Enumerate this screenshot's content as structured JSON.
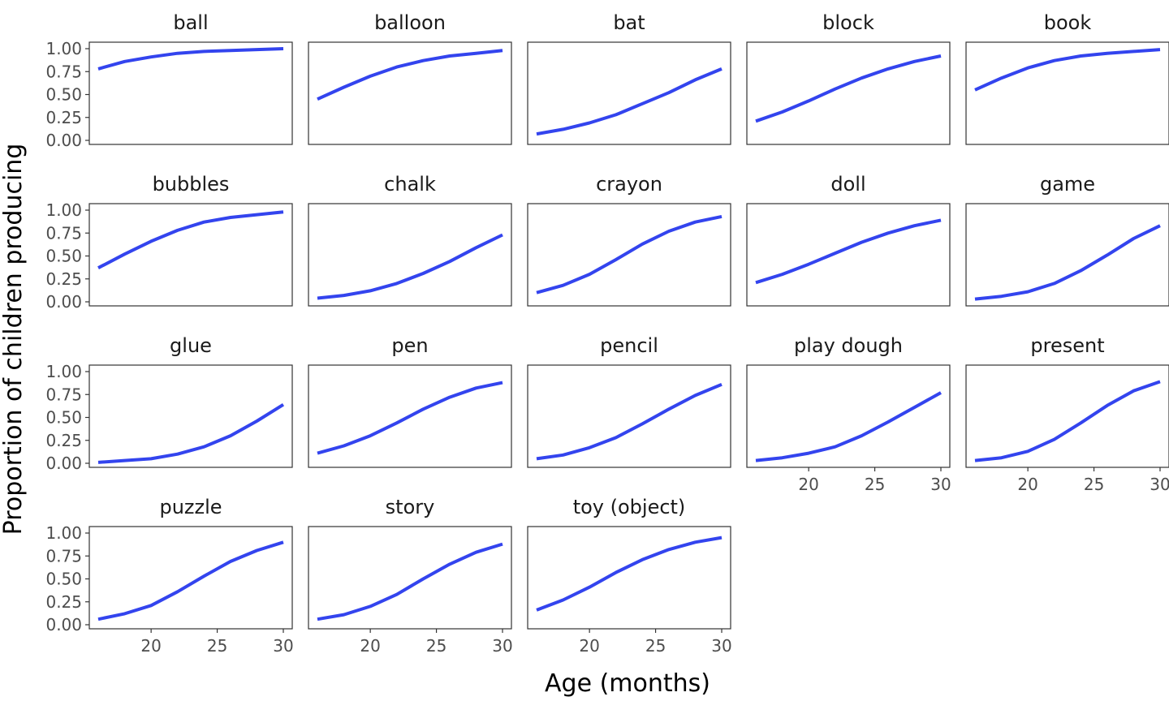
{
  "chart_data": {
    "type": "line",
    "facet_layout": "wrap",
    "ncol": 5,
    "xlabel": "Age (months)",
    "ylabel": "Proportion of children producing",
    "xlim": [
      16,
      30
    ],
    "ylim": [
      0,
      1
    ],
    "x_ticks": [
      20,
      25,
      30
    ],
    "x_tick_labels": [
      "20",
      "25",
      "30"
    ],
    "y_ticks": [
      0,
      0.25,
      0.5,
      0.75,
      1
    ],
    "y_tick_labels": [
      "0.00",
      "0.25",
      "0.50",
      "0.75",
      "1.00"
    ],
    "x": [
      16,
      18,
      20,
      22,
      24,
      26,
      28,
      30
    ],
    "line_color": "#3344ee",
    "series": [
      {
        "name": "ball",
        "values": [
          0.78,
          0.86,
          0.91,
          0.95,
          0.97,
          0.98,
          0.99,
          1.0
        ]
      },
      {
        "name": "balloon",
        "values": [
          0.45,
          0.58,
          0.7,
          0.8,
          0.87,
          0.92,
          0.95,
          0.98
        ]
      },
      {
        "name": "bat",
        "values": [
          0.07,
          0.12,
          0.19,
          0.28,
          0.4,
          0.52,
          0.66,
          0.78
        ]
      },
      {
        "name": "block",
        "values": [
          0.21,
          0.31,
          0.43,
          0.56,
          0.68,
          0.78,
          0.86,
          0.92
        ]
      },
      {
        "name": "book",
        "values": [
          0.55,
          0.68,
          0.79,
          0.87,
          0.92,
          0.95,
          0.97,
          0.99
        ]
      },
      {
        "name": "bubbles",
        "values": [
          0.37,
          0.52,
          0.66,
          0.78,
          0.87,
          0.92,
          0.95,
          0.98
        ]
      },
      {
        "name": "chalk",
        "values": [
          0.04,
          0.07,
          0.12,
          0.2,
          0.31,
          0.44,
          0.59,
          0.73
        ]
      },
      {
        "name": "crayon",
        "values": [
          0.1,
          0.18,
          0.3,
          0.46,
          0.63,
          0.77,
          0.87,
          0.93
        ]
      },
      {
        "name": "doll",
        "values": [
          0.21,
          0.3,
          0.41,
          0.53,
          0.65,
          0.75,
          0.83,
          0.89
        ]
      },
      {
        "name": "game",
        "values": [
          0.03,
          0.06,
          0.11,
          0.2,
          0.34,
          0.51,
          0.69,
          0.83
        ]
      },
      {
        "name": "glue",
        "values": [
          0.01,
          0.03,
          0.05,
          0.1,
          0.18,
          0.3,
          0.46,
          0.64
        ]
      },
      {
        "name": "pen",
        "values": [
          0.11,
          0.19,
          0.3,
          0.44,
          0.59,
          0.72,
          0.82,
          0.88
        ]
      },
      {
        "name": "pencil",
        "values": [
          0.05,
          0.09,
          0.17,
          0.28,
          0.43,
          0.59,
          0.74,
          0.86
        ]
      },
      {
        "name": "play dough",
        "values": [
          0.03,
          0.06,
          0.11,
          0.18,
          0.3,
          0.45,
          0.61,
          0.77
        ]
      },
      {
        "name": "present",
        "values": [
          0.03,
          0.06,
          0.13,
          0.26,
          0.44,
          0.63,
          0.79,
          0.89
        ]
      },
      {
        "name": "puzzle",
        "values": [
          0.06,
          0.12,
          0.21,
          0.36,
          0.53,
          0.69,
          0.81,
          0.9
        ]
      },
      {
        "name": "story",
        "values": [
          0.06,
          0.11,
          0.2,
          0.33,
          0.5,
          0.66,
          0.79,
          0.88
        ]
      },
      {
        "name": "toy (object)",
        "values": [
          0.16,
          0.27,
          0.41,
          0.57,
          0.71,
          0.82,
          0.9,
          0.95
        ]
      }
    ],
    "grid": false,
    "legend": "none"
  }
}
